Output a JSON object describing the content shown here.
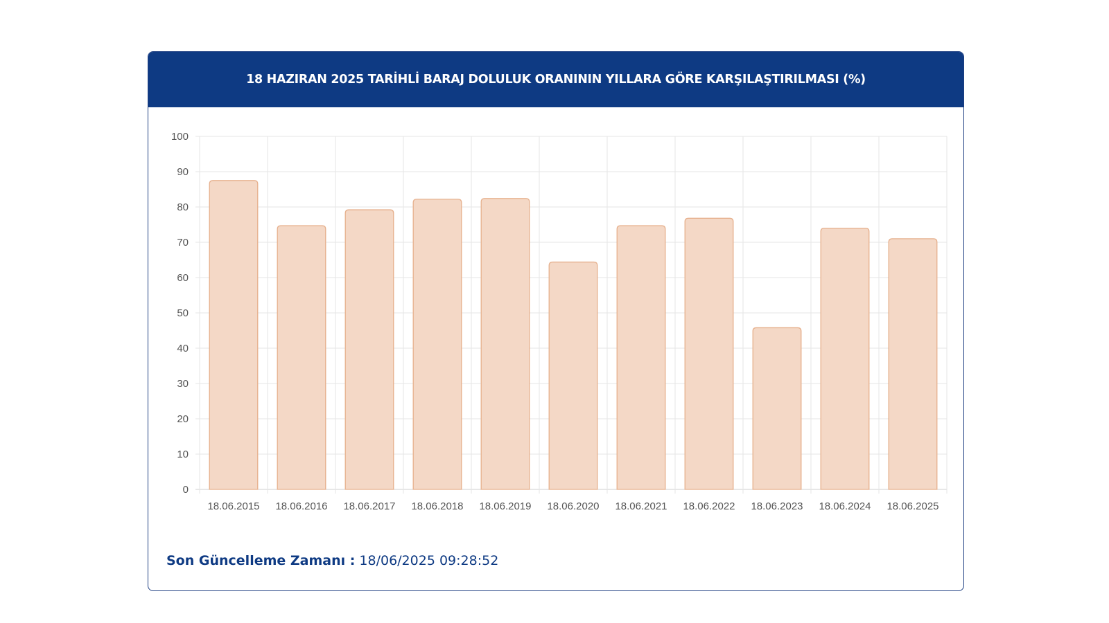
{
  "header": {
    "title": "18 HAZIRAN 2025 TARİHLİ BARAJ DOLULUK ORANININ YILLARA GÖRE KARŞILAŞTIRILMASI (%)"
  },
  "footer": {
    "label": "Son Güncelleme Zamanı :",
    "value": " 18/06/2025 09:28:52"
  },
  "colors": {
    "header_bg": "#0e3a83",
    "bar_fill": "#f4d8c6",
    "bar_stroke": "#e6b08d",
    "grid": "#e6e6e6",
    "footer_text": "#0e3a83"
  },
  "chart_data": {
    "type": "bar",
    "title": "18 HAZIRAN 2025 TARİHLİ BARAJ DOLULUK ORANININ YILLARA GÖRE KARŞILAŞTIRILMASI (%)",
    "categories": [
      "18.06.2015",
      "18.06.2016",
      "18.06.2017",
      "18.06.2018",
      "18.06.2019",
      "18.06.2020",
      "18.06.2021",
      "18.06.2022",
      "18.06.2023",
      "18.06.2024",
      "18.06.2025"
    ],
    "values": [
      87.5,
      74.7,
      79.2,
      82.2,
      82.4,
      64.4,
      74.7,
      76.8,
      45.8,
      74.0,
      71.0
    ],
    "ylim": [
      0,
      100
    ],
    "yticks": [
      0,
      10,
      20,
      30,
      40,
      50,
      60,
      70,
      80,
      90,
      100
    ],
    "grid": true,
    "legend": "none"
  }
}
